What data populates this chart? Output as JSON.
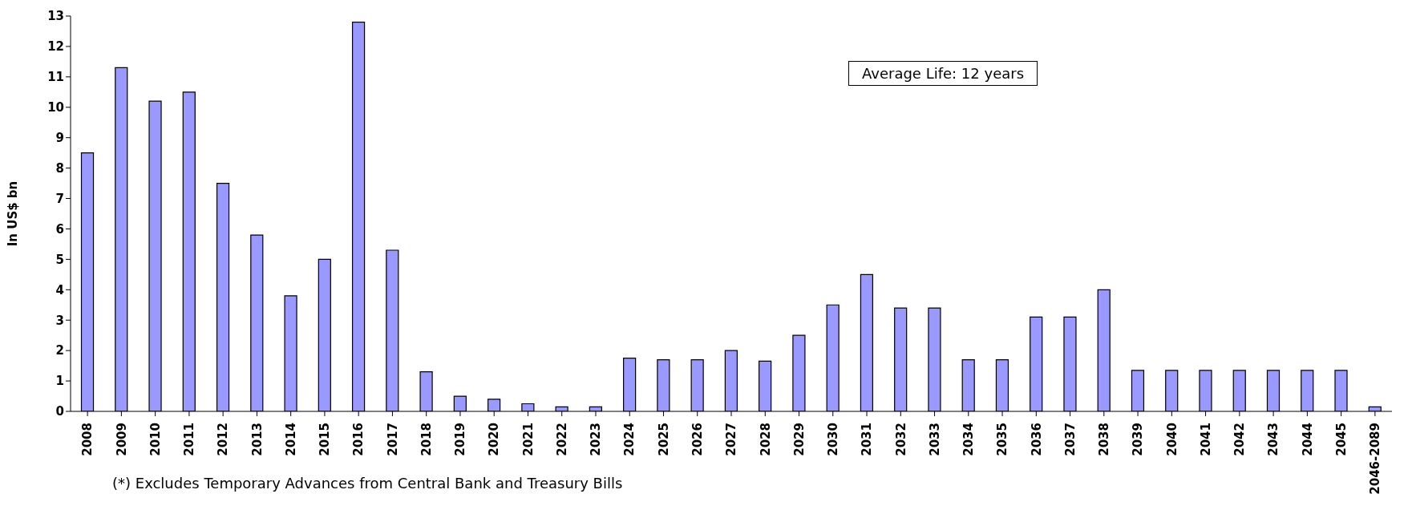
{
  "chart_data": {
    "type": "bar",
    "ylabel": "In US$ bn",
    "categories": [
      "2008",
      "2009",
      "2010",
      "2011",
      "2012",
      "2013",
      "2014",
      "2015",
      "2016",
      "2017",
      "2018",
      "2019",
      "2020",
      "2021",
      "2022",
      "2023",
      "2024",
      "2025",
      "2026",
      "2027",
      "2028",
      "2029",
      "2030",
      "2031",
      "2032",
      "2033",
      "2034",
      "2035",
      "2036",
      "2037",
      "2038",
      "2039",
      "2040",
      "2041",
      "2042",
      "2043",
      "2044",
      "2045",
      "2046-2089"
    ],
    "values": [
      8.5,
      11.3,
      10.2,
      10.5,
      7.5,
      5.8,
      3.8,
      5.0,
      12.8,
      5.3,
      1.3,
      0.5,
      0.4,
      0.25,
      0.15,
      0.15,
      1.75,
      1.7,
      1.7,
      2.0,
      1.65,
      2.5,
      3.5,
      4.5,
      3.4,
      3.4,
      1.7,
      1.7,
      3.1,
      3.1,
      4.0,
      1.35,
      1.35,
      1.35,
      1.35,
      1.35,
      1.35,
      1.35,
      0.15
    ],
    "color": "#9999ff",
    "ylim": [
      0,
      13
    ],
    "yticks": [
      0,
      1,
      2,
      3,
      4,
      5,
      6,
      7,
      8,
      9,
      10,
      11,
      12,
      13
    ],
    "grid": false,
    "legend": false,
    "annotations": [
      "Average Life: 12 years",
      "(*) Excludes Temporary Advances from Central Bank and Treasury Bills"
    ]
  }
}
